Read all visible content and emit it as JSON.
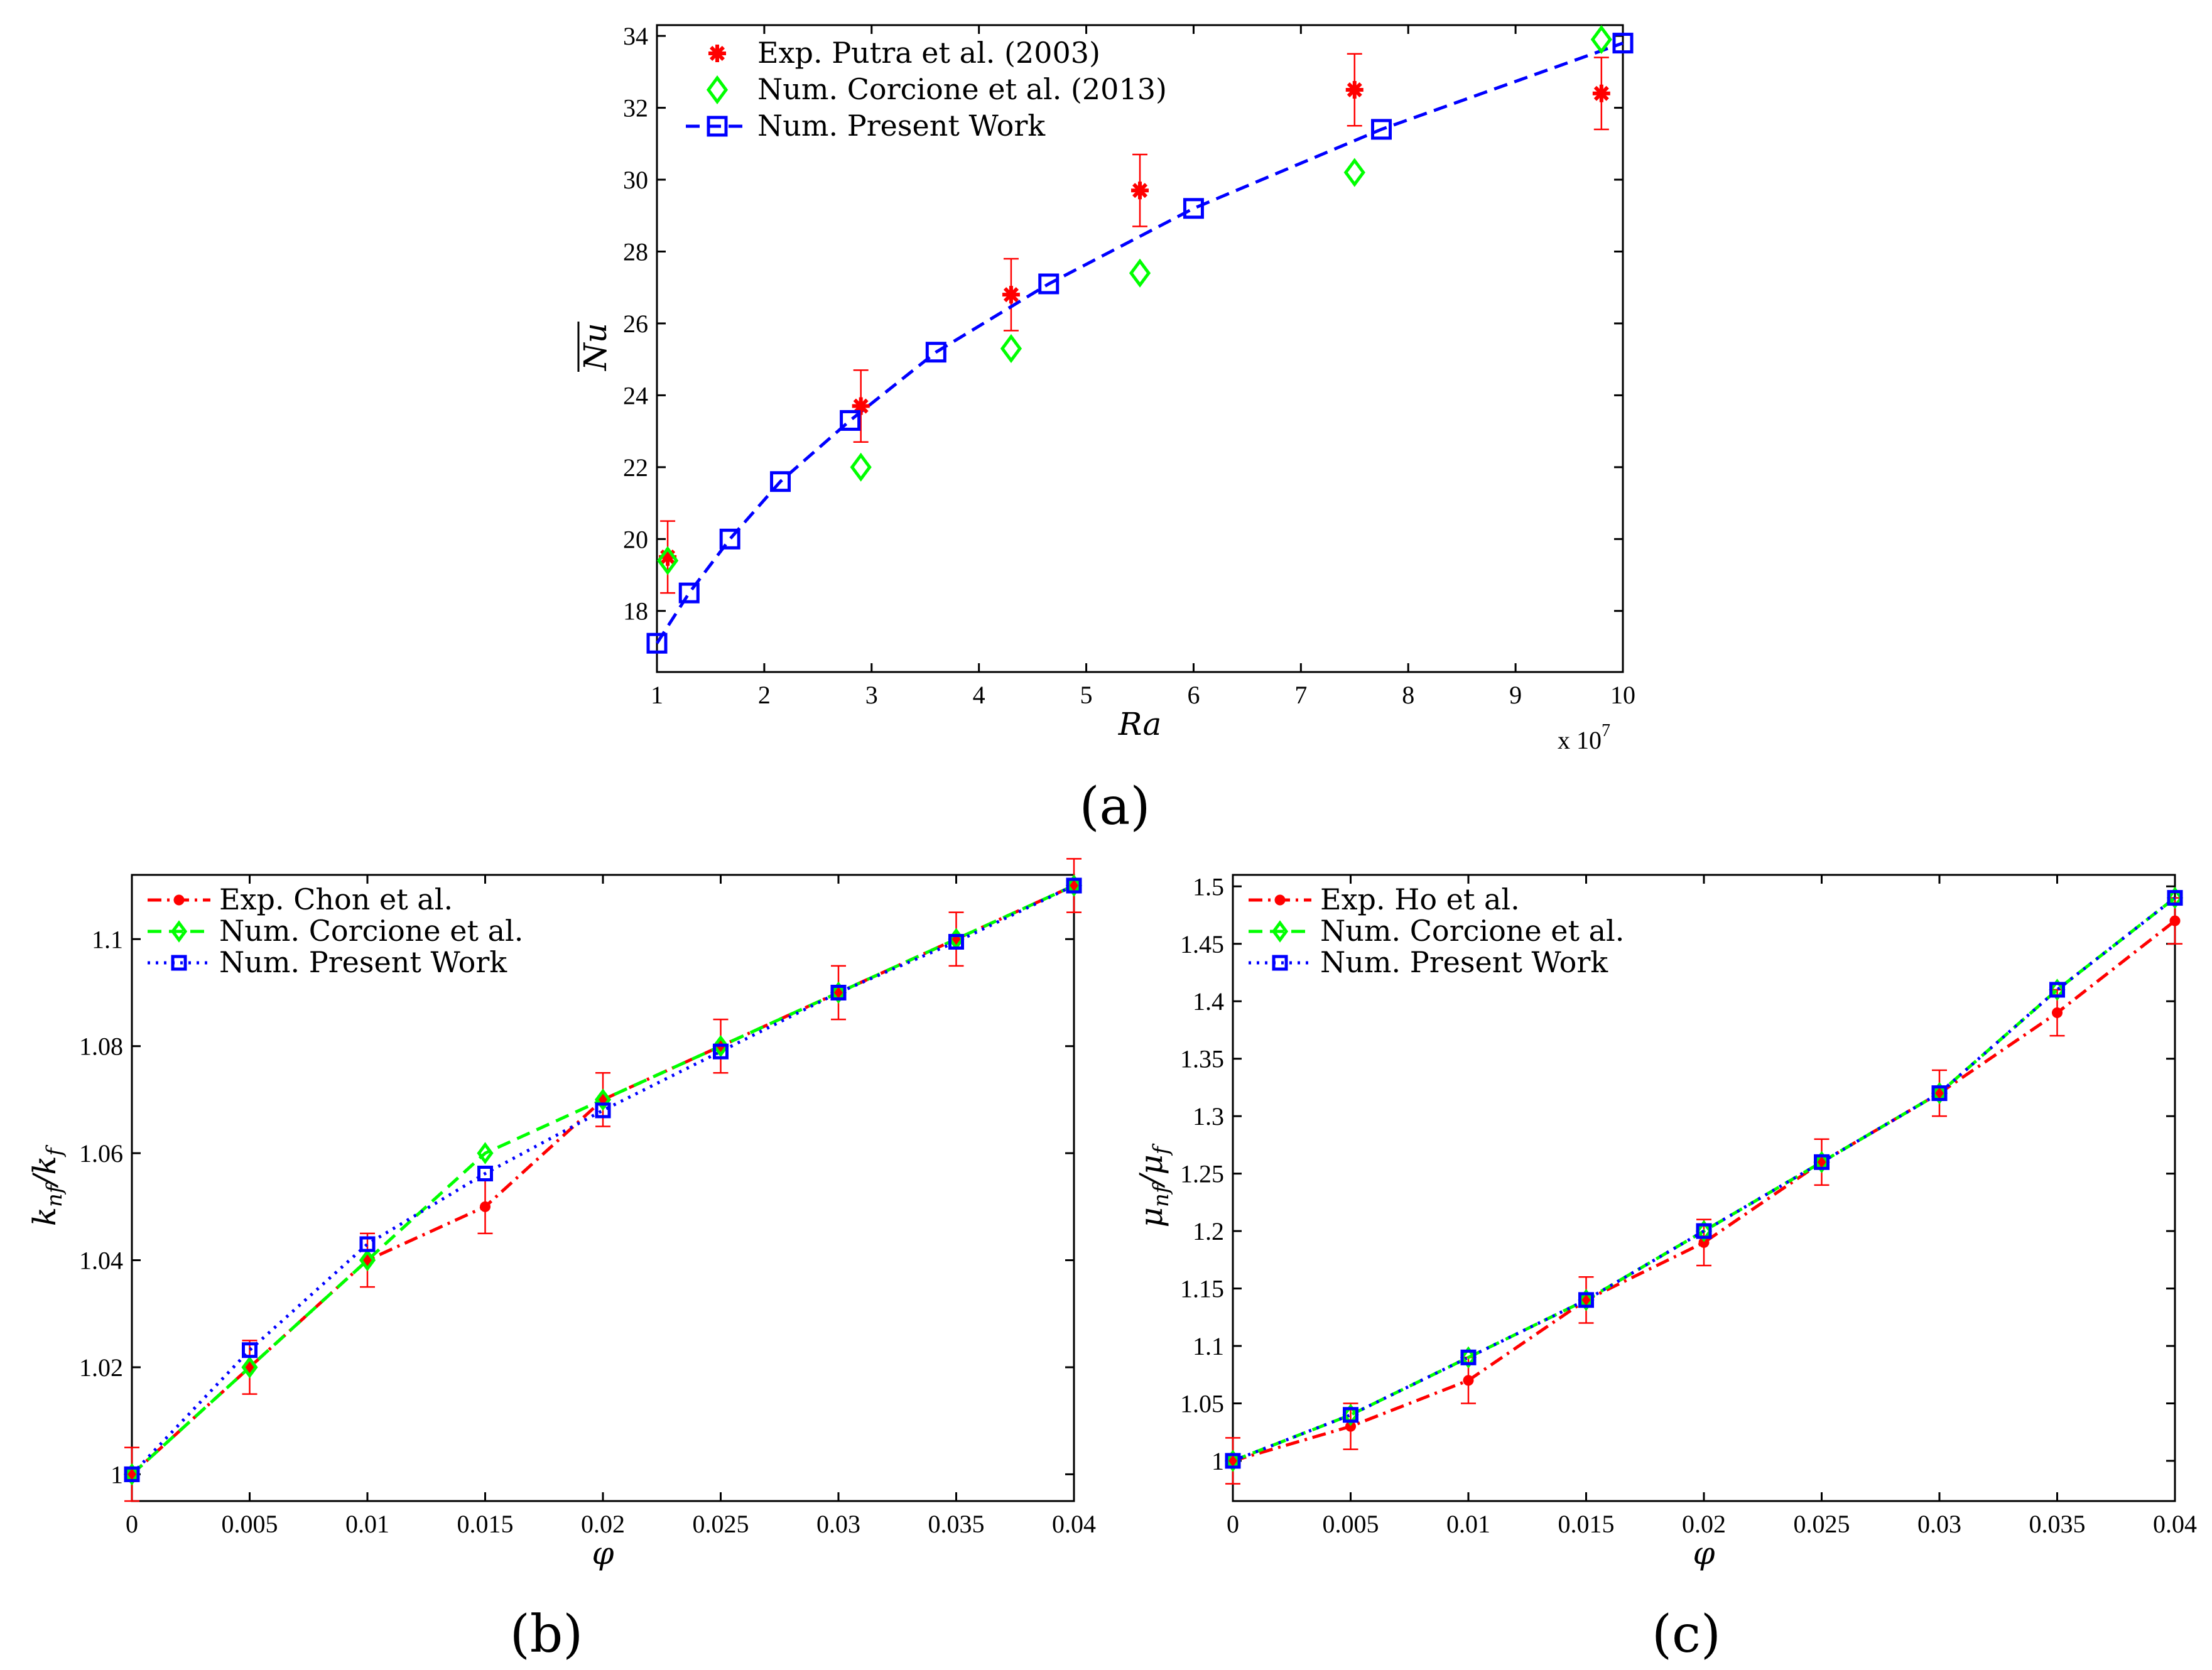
{
  "chart_data": [
    {
      "panel": "(a)",
      "type": "scatter",
      "xlabel": "Ra",
      "ylabel": "Nu",
      "x_multiplier": "x 10",
      "x_multiplier_exp": "7",
      "xlim": [
        1,
        10
      ],
      "ylim": [
        16.3,
        34.3
      ],
      "xticks": [
        1,
        2,
        3,
        4,
        5,
        6,
        7,
        8,
        9,
        10
      ],
      "yticks": [
        18,
        20,
        22,
        24,
        26,
        28,
        30,
        32,
        34
      ],
      "legend_position": "top-left",
      "series": [
        {
          "name": "Exp. Putra et al. (2003)",
          "marker": "asterisk",
          "color": "#ff0000",
          "line": "none",
          "x": [
            1.1,
            2.9,
            4.3,
            5.5,
            7.5,
            9.8
          ],
          "y": [
            19.5,
            23.7,
            26.8,
            29.7,
            32.5,
            32.4
          ],
          "err": [
            1.0,
            1.0,
            1.0,
            1.0,
            1.0,
            1.0
          ]
        },
        {
          "name": "Num. Corcione et al. (2013)",
          "marker": "diamond",
          "color": "#00ff00",
          "line": "none",
          "x": [
            1.1,
            2.9,
            4.3,
            5.5,
            7.5,
            9.8
          ],
          "y": [
            19.4,
            22.0,
            25.3,
            27.4,
            30.2,
            33.9
          ]
        },
        {
          "name": "Num. Present Work",
          "marker": "square",
          "color": "#0000ff",
          "line": "dashed",
          "x": [
            1.0,
            1.3,
            1.68,
            2.15,
            2.8,
            3.6,
            4.65,
            6.0,
            7.75,
            10.0
          ],
          "y": [
            17.1,
            18.5,
            20.0,
            21.6,
            23.3,
            25.2,
            27.1,
            29.2,
            31.4,
            33.8
          ]
        }
      ]
    },
    {
      "panel": "(b)",
      "type": "line",
      "xlabel": "φ",
      "ylabel": "k_nf / k_f",
      "ylabel_main": "k",
      "ylabel_sub1": "nf",
      "ylabel_mid": "/k",
      "ylabel_sub2": "f",
      "xlim": [
        0,
        0.04
      ],
      "ylim": [
        0.995,
        1.112
      ],
      "xticks": [
        0,
        0.005,
        0.01,
        0.015,
        0.02,
        0.025,
        0.03,
        0.035,
        0.04
      ],
      "xticklabels": [
        "0",
        "0.005",
        "0.01",
        "0.015",
        "0.02",
        "0.025",
        "0.03",
        "0.035",
        "0.04"
      ],
      "yticks": [
        1.0,
        1.02,
        1.04,
        1.06,
        1.08,
        1.1
      ],
      "yticklabels": [
        "1",
        "1.02",
        "1.04",
        "1.06",
        "1.08",
        "1.1"
      ],
      "legend_position": "top-left",
      "x": [
        0,
        0.005,
        0.01,
        0.015,
        0.02,
        0.025,
        0.03,
        0.035,
        0.04
      ],
      "series": [
        {
          "name": "Exp. Chon et al.",
          "marker": "circle",
          "color": "#ff0000",
          "line": "dashdot",
          "values": [
            1.0,
            1.02,
            1.04,
            1.05,
            1.07,
            1.08,
            1.09,
            1.1,
            1.11
          ],
          "err": [
            0.005,
            0.005,
            0.005,
            0.005,
            0.005,
            0.005,
            0.005,
            0.005,
            0.005
          ]
        },
        {
          "name": "Num. Corcione et al.",
          "marker": "diamond",
          "color": "#00ff00",
          "line": "dashed",
          "values": [
            1.0,
            1.02,
            1.04,
            1.06,
            1.07,
            1.08,
            1.09,
            1.1,
            1.11
          ]
        },
        {
          "name": "Num. Present Work",
          "marker": "square",
          "color": "#0000ff",
          "line": "dotted",
          "values": [
            1.0,
            1.0232,
            1.043,
            1.0562,
            1.068,
            1.079,
            1.09,
            1.0995,
            1.11
          ]
        }
      ]
    },
    {
      "panel": "(c)",
      "type": "line",
      "xlabel": "φ",
      "ylabel": "μ_nf / μ_f",
      "ylabel_main": "μ",
      "ylabel_sub1": "nf",
      "ylabel_mid": "/μ",
      "ylabel_sub2": "f",
      "xlim": [
        0,
        0.04
      ],
      "ylim": [
        0.965,
        1.51
      ],
      "xticks": [
        0,
        0.005,
        0.01,
        0.015,
        0.02,
        0.025,
        0.03,
        0.035,
        0.04
      ],
      "xticklabels": [
        "0",
        "0.005",
        "0.01",
        "0.015",
        "0.02",
        "0.025",
        "0.03",
        "0.035",
        "0.04"
      ],
      "yticks": [
        1.0,
        1.05,
        1.1,
        1.15,
        1.2,
        1.25,
        1.3,
        1.35,
        1.4,
        1.45,
        1.5
      ],
      "yticklabels": [
        "1",
        "1.05",
        "1.1",
        "1.15",
        "1.2",
        "1.25",
        "1.3",
        "1.35",
        "1.4",
        "1.45",
        "1.5"
      ],
      "legend_position": "top-left",
      "x": [
        0,
        0.005,
        0.01,
        0.015,
        0.02,
        0.025,
        0.03,
        0.035,
        0.04
      ],
      "series": [
        {
          "name": "Exp. Ho et al.",
          "marker": "circle",
          "color": "#ff0000",
          "line": "dashdot",
          "values": [
            1.0,
            1.03,
            1.07,
            1.14,
            1.19,
            1.26,
            1.32,
            1.39,
            1.47
          ],
          "err": [
            0.02,
            0.02,
            0.02,
            0.02,
            0.02,
            0.02,
            0.02,
            0.02,
            0.02
          ]
        },
        {
          "name": "Num. Corcione et al.",
          "marker": "diamond",
          "color": "#00ff00",
          "line": "dashed",
          "values": [
            1.0,
            1.04,
            1.09,
            1.14,
            1.2,
            1.26,
            1.32,
            1.41,
            1.49
          ]
        },
        {
          "name": "Num. Present Work",
          "marker": "square",
          "color": "#0000ff",
          "line": "dotted",
          "values": [
            1.0,
            1.04,
            1.09,
            1.14,
            1.2,
            1.26,
            1.32,
            1.41,
            1.49
          ]
        }
      ]
    }
  ]
}
